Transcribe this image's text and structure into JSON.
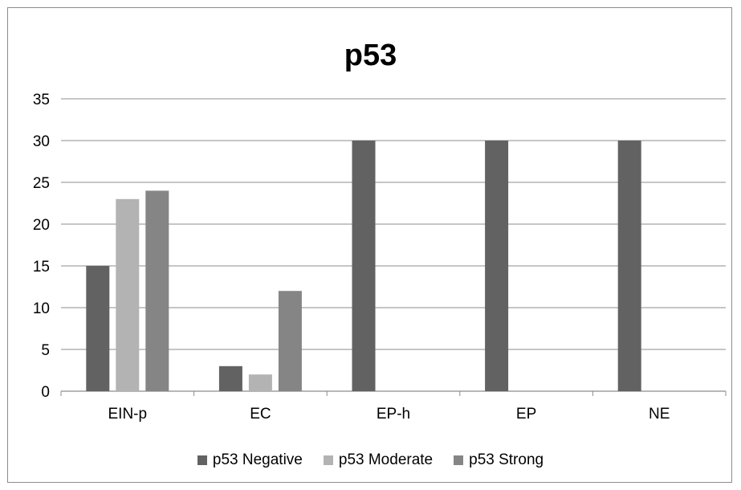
{
  "chart_data": {
    "type": "bar",
    "title": "p53",
    "categories": [
      "EIN-p",
      "EC",
      "EP-h",
      "EP",
      "NE"
    ],
    "series": [
      {
        "name": "p53 Negative",
        "color": "#626262",
        "values": [
          15,
          3,
          30,
          30,
          30
        ]
      },
      {
        "name": "p53 Moderate",
        "color": "#b3b3b3",
        "values": [
          23,
          2,
          0,
          0,
          0
        ]
      },
      {
        "name": "p53 Strong",
        "color": "#858585",
        "values": [
          24,
          12,
          0,
          0,
          0
        ]
      }
    ],
    "ylim": [
      0,
      35
    ],
    "yticks": [
      "0",
      "5",
      "10",
      "15",
      "20",
      "25",
      "30",
      "35"
    ],
    "grid": true,
    "legend": "bottom"
  }
}
